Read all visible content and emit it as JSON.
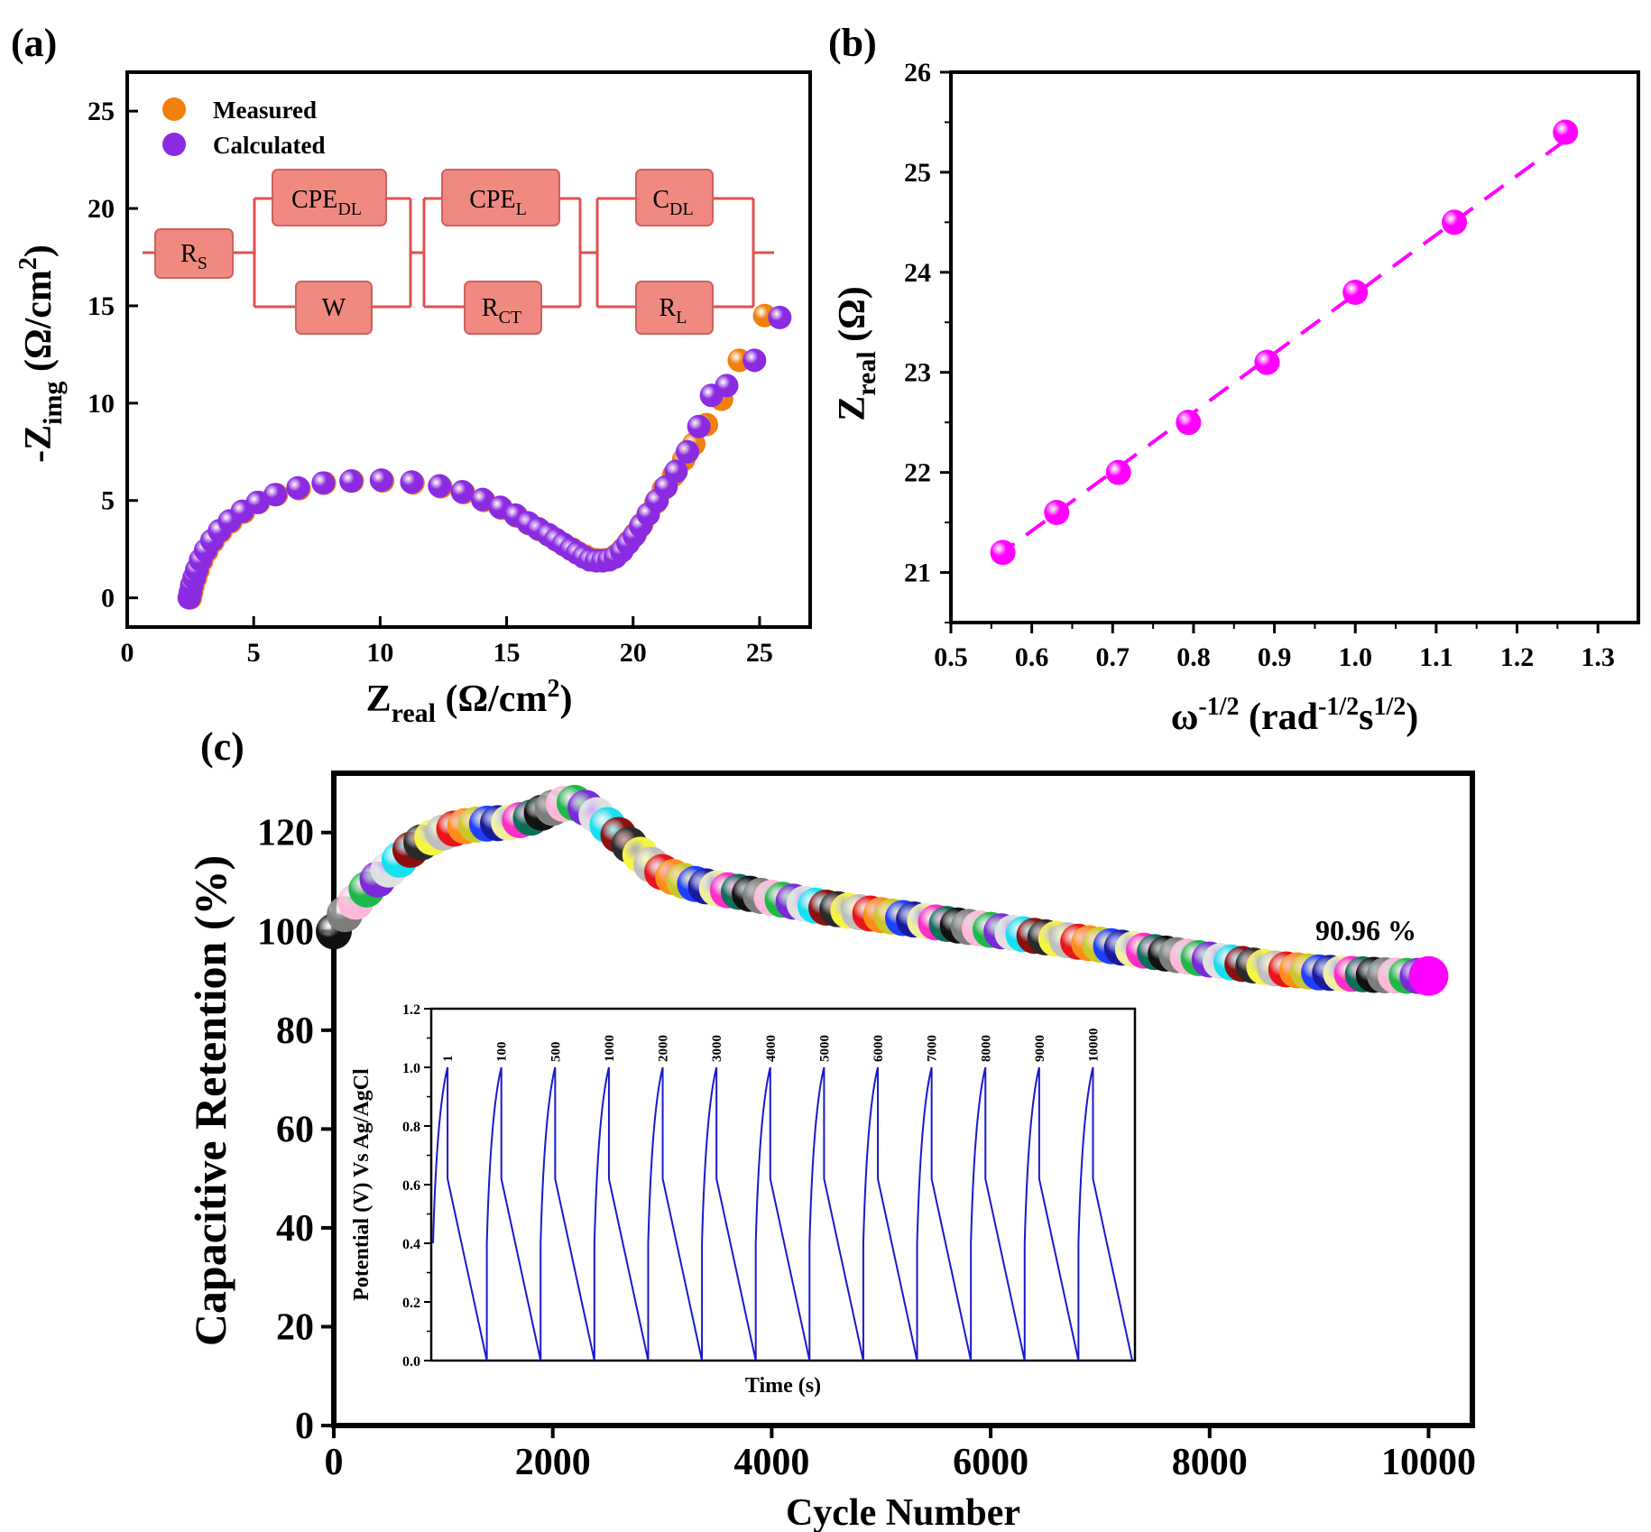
{
  "panel_labels": [
    "(a)",
    "(b)",
    "(c)"
  ],
  "chart_data": [
    {
      "panel": "(a)",
      "type": "scatter",
      "xlabel": {
        "main": "Z",
        "sub": "real",
        "unit": " (Ω/cm",
        "sup": "2",
        "close": ")"
      },
      "ylabel": {
        "main": "-Z",
        "sub": "img",
        "unit": " (Ω/cm",
        "sup": "2",
        "close": ")"
      },
      "xlim": [
        0,
        27
      ],
      "ylim": [
        -1.5,
        27
      ],
      "xticks": [
        "0",
        "5",
        "10",
        "15",
        "20",
        "25"
      ],
      "yticks": [
        "0",
        "5",
        "10",
        "15",
        "20",
        "25"
      ],
      "legend": {
        "position": "top-left",
        "entries": [
          "Measured",
          "Calculated"
        ]
      },
      "colors": {
        "measured": "#f07f0e",
        "calculated": "#8a2be2"
      },
      "circuit": {
        "elements": [
          {
            "label": "R",
            "sub": "S"
          },
          {
            "label": "CPE",
            "sub": "DL"
          },
          {
            "label": "W",
            "sub": ""
          },
          {
            "label": "CPE",
            "sub": "L"
          },
          {
            "label": "R",
            "sub": "CT"
          },
          {
            "label": "C",
            "sub": "DL"
          },
          {
            "label": "R",
            "sub": "L"
          }
        ],
        "color": "#e05050",
        "box_fill": "#f08a80"
      },
      "series": [
        {
          "name": "Measured",
          "x": [
            2.5,
            2.55,
            2.6,
            2.7,
            2.8,
            2.95,
            3.15,
            3.4,
            3.7,
            4.1,
            4.6,
            5.2,
            5.9,
            6.8,
            7.8,
            8.9,
            10.1,
            11.3,
            12.4,
            13.3,
            14.1,
            14.8,
            15.4,
            15.9,
            16.3,
            16.7,
            17.0,
            17.3,
            17.6,
            17.85,
            18.1,
            18.35,
            18.6,
            18.85,
            19.1,
            19.35,
            19.6,
            19.85,
            20.1,
            20.35,
            20.6,
            20.9,
            21.2,
            21.6,
            22.0,
            22.4,
            22.9,
            23.5,
            24.2,
            25.2
          ],
          "y": [
            0.0,
            0.3,
            0.6,
            1.0,
            1.4,
            1.9,
            2.4,
            2.9,
            3.4,
            3.9,
            4.4,
            4.9,
            5.3,
            5.6,
            5.9,
            6.0,
            6.0,
            5.9,
            5.7,
            5.4,
            5.0,
            4.6,
            4.2,
            3.8,
            3.5,
            3.2,
            2.95,
            2.7,
            2.5,
            2.3,
            2.15,
            2.0,
            1.95,
            1.95,
            2.0,
            2.2,
            2.5,
            2.9,
            3.3,
            3.8,
            4.3,
            4.9,
            5.6,
            6.3,
            7.1,
            7.9,
            8.9,
            10.2,
            12.2,
            14.5
          ]
        },
        {
          "name": "Calculated",
          "x": [
            2.45,
            2.5,
            2.55,
            2.65,
            2.75,
            2.9,
            3.1,
            3.35,
            3.65,
            4.05,
            4.55,
            5.15,
            5.85,
            6.75,
            7.75,
            8.85,
            10.05,
            11.25,
            12.35,
            13.25,
            14.05,
            14.75,
            15.35,
            15.85,
            16.25,
            16.65,
            16.95,
            17.25,
            17.55,
            17.8,
            18.05,
            18.3,
            18.55,
            18.8,
            19.05,
            19.3,
            19.55,
            19.8,
            20.05,
            20.3,
            20.6,
            20.95,
            21.3,
            21.7,
            22.15,
            22.6,
            23.1,
            23.7,
            24.8,
            25.8
          ],
          "y": [
            0.0,
            0.3,
            0.65,
            1.05,
            1.45,
            1.95,
            2.45,
            2.95,
            3.45,
            3.95,
            4.45,
            4.9,
            5.3,
            5.65,
            5.9,
            6.0,
            6.05,
            5.95,
            5.75,
            5.45,
            5.05,
            4.65,
            4.25,
            3.85,
            3.55,
            3.25,
            3.0,
            2.75,
            2.5,
            2.3,
            2.1,
            1.95,
            1.9,
            1.9,
            1.95,
            2.1,
            2.4,
            2.8,
            3.2,
            3.7,
            4.3,
            5.0,
            5.7,
            6.5,
            7.5,
            8.8,
            10.4,
            10.9,
            12.2,
            14.4
          ]
        }
      ]
    },
    {
      "panel": "(b)",
      "type": "scatter",
      "xlabel": {
        "main": "ω",
        "sup": "-1/2",
        "unit": " (rad",
        "sup2": "-1/2",
        "mid": "s",
        "sup3": "1/2",
        "close": ")"
      },
      "ylabel": {
        "main": "Z",
        "sub": "real",
        "unit": " (Ω)"
      },
      "xlim": [
        0.5,
        1.35
      ],
      "ylim": [
        20.5,
        26.0
      ],
      "xticks": [
        "0.5",
        "0.6",
        "0.7",
        "0.8",
        "0.9",
        "1.0",
        "1.1",
        "1.2",
        "1.3"
      ],
      "yticks": [
        "21",
        "22",
        "23",
        "24",
        "25",
        "26"
      ],
      "color": "#ff00ff",
      "fit": {
        "x": [
          0.555,
          1.265
        ],
        "y": [
          21.15,
          25.35
        ],
        "style": "dashed"
      },
      "x": [
        0.5642,
        0.6308,
        0.7071,
        0.7937,
        0.8909,
        1.0,
        1.1225,
        1.2599
      ],
      "y": [
        21.2,
        21.6,
        22.0,
        22.5,
        23.1,
        23.8,
        24.5,
        25.4
      ]
    },
    {
      "panel": "(c)",
      "type": "scatter",
      "xlabel": "Cycle Number",
      "ylabel": "Capacitive Retention (%)",
      "xlim": [
        0,
        10400
      ],
      "ylim": [
        0,
        132
      ],
      "xticks": [
        "0",
        "2000",
        "4000",
        "6000",
        "8000",
        "10000"
      ],
      "yticks": [
        "0",
        "20",
        "40",
        "60",
        "80",
        "100",
        "120"
      ],
      "annotation": "90.96 %",
      "palette": [
        "#111111",
        "#e8151b",
        "#1fb84a",
        "#1e40ff",
        "#17e0f0",
        "#ff2ec8",
        "#f5f542",
        "#7d7d7d",
        "#ff8c1a",
        "#7a2ad6",
        "#1a1a9e",
        "#8c1010",
        "#0f6e5a",
        "#bfbfbf",
        "#ffb8d9",
        "#c8c82a",
        "#e0e0e0",
        "#f0f0a0",
        "#2a2a2a"
      ],
      "x": [
        0,
        100,
        200,
        300,
        400,
        500,
        600,
        700,
        800,
        900,
        1000,
        1100,
        1200,
        1300,
        1400,
        1500,
        1600,
        1700,
        1800,
        1900,
        2000,
        2100,
        2200,
        2300,
        2400,
        2500,
        2600,
        2700,
        2800,
        2900,
        3000,
        3100,
        3200,
        3300,
        3400,
        3500,
        3600,
        3700,
        3800,
        3900,
        4000,
        4100,
        4200,
        4300,
        4400,
        4500,
        4600,
        4700,
        4800,
        4900,
        5000,
        5100,
        5200,
        5300,
        5400,
        5500,
        5600,
        5700,
        5800,
        5900,
        6000,
        6100,
        6200,
        6300,
        6400,
        6500,
        6600,
        6700,
        6800,
        6900,
        7000,
        7100,
        7200,
        7300,
        7400,
        7500,
        7600,
        7700,
        7800,
        7900,
        8000,
        8100,
        8200,
        8300,
        8400,
        8500,
        8600,
        8700,
        8800,
        8900,
        9000,
        9100,
        9200,
        9300,
        9400,
        9500,
        9600,
        9700,
        9800,
        9900,
        10000
      ],
      "y": [
        100.0,
        103.5,
        106.0,
        108.5,
        110.5,
        112.5,
        114.5,
        116.5,
        118.0,
        119.0,
        120.0,
        120.8,
        121.3,
        121.6,
        121.8,
        121.9,
        122.0,
        122.5,
        123.0,
        124.0,
        125.0,
        125.8,
        126.0,
        125.0,
        123.5,
        121.5,
        119.5,
        117.5,
        115.5,
        113.5,
        112.0,
        111.0,
        110.2,
        109.6,
        109.1,
        108.7,
        108.3,
        108.0,
        107.6,
        107.2,
        106.8,
        106.4,
        106.0,
        105.6,
        105.2,
        104.8,
        104.5,
        104.2,
        103.9,
        103.6,
        103.3,
        103.0,
        102.7,
        102.4,
        102.1,
        101.8,
        101.5,
        101.2,
        100.9,
        100.6,
        100.3,
        100.0,
        99.7,
        99.4,
        99.1,
        98.8,
        98.5,
        98.2,
        97.9,
        97.6,
        97.3,
        97.0,
        96.7,
        96.4,
        96.1,
        95.8,
        95.5,
        95.2,
        94.9,
        94.6,
        94.3,
        94.0,
        93.7,
        93.4,
        93.1,
        92.8,
        92.5,
        92.3,
        92.1,
        91.9,
        91.7,
        91.6,
        91.5,
        91.4,
        91.3,
        91.2,
        91.1,
        91.05,
        91.0,
        90.98,
        90.96
      ]
    },
    {
      "panel": "(c)-inset",
      "type": "line",
      "xlabel": "Time (s)",
      "ylabel": "Potential (V) Vs Ag/AgCl",
      "ylim": [
        0.0,
        1.2
      ],
      "yticks": [
        "0.0",
        "0.2",
        "0.4",
        "0.6",
        "0.8",
        "1.0",
        "1.2"
      ],
      "color": "#1a1acc",
      "cycle_labels": [
        "1",
        "100",
        "500",
        "1000",
        "2000",
        "3000",
        "4000",
        "5000",
        "6000",
        "7000",
        "8000",
        "9000",
        "10000"
      ],
      "curve_shape": {
        "charge_start_v": 0.4,
        "peak_v": 1.0,
        "after_drop_v": 0.62,
        "end_v": 0.0
      }
    }
  ]
}
